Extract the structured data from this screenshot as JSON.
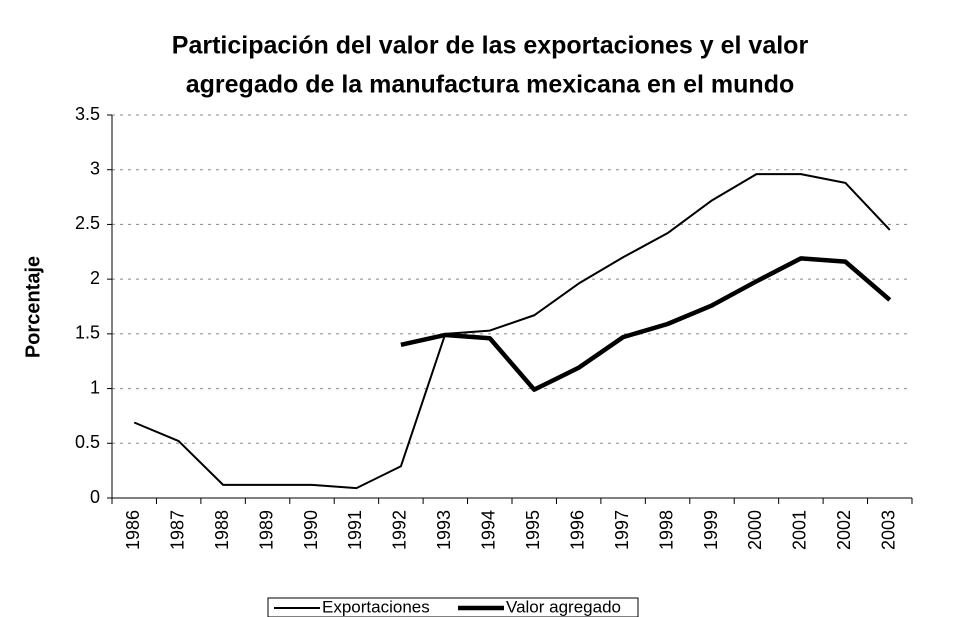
{
  "chart_data": {
    "type": "line",
    "title": [
      "Participación del valor de las exportaciones y el valor",
      "agregado de la manufactura mexicana en el mundo"
    ],
    "y_label": "Porcentaje",
    "categories": [
      "1986",
      "1987",
      "1988",
      "1989",
      "1990",
      "1991",
      "1992",
      "1993",
      "1994",
      "1995",
      "1996",
      "1997",
      "1998",
      "1999",
      "2000",
      "2001",
      "2002",
      "2003"
    ],
    "series": [
      {
        "name": "Exportaciones",
        "color": "#000000",
        "values": [
          0.69,
          0.52,
          0.12,
          0.12,
          0.12,
          0.09,
          0.29,
          1.5,
          1.53,
          1.67,
          1.96,
          2.2,
          2.42,
          2.72,
          2.96,
          2.96,
          2.88,
          2.45
        ]
      },
      {
        "name": "Valor agregado",
        "color": "#000000",
        "values": [
          null,
          null,
          null,
          null,
          null,
          null,
          1.4,
          1.49,
          1.46,
          0.99,
          1.19,
          1.47,
          1.59,
          1.76,
          1.98,
          2.19,
          2.16,
          1.81
        ]
      }
    ],
    "ylim": [
      0,
      3.5
    ],
    "yticks": [
      0,
      0.5,
      1,
      1.5,
      2,
      2.5,
      3,
      3.5
    ],
    "grid": true,
    "legend": "bottom"
  }
}
